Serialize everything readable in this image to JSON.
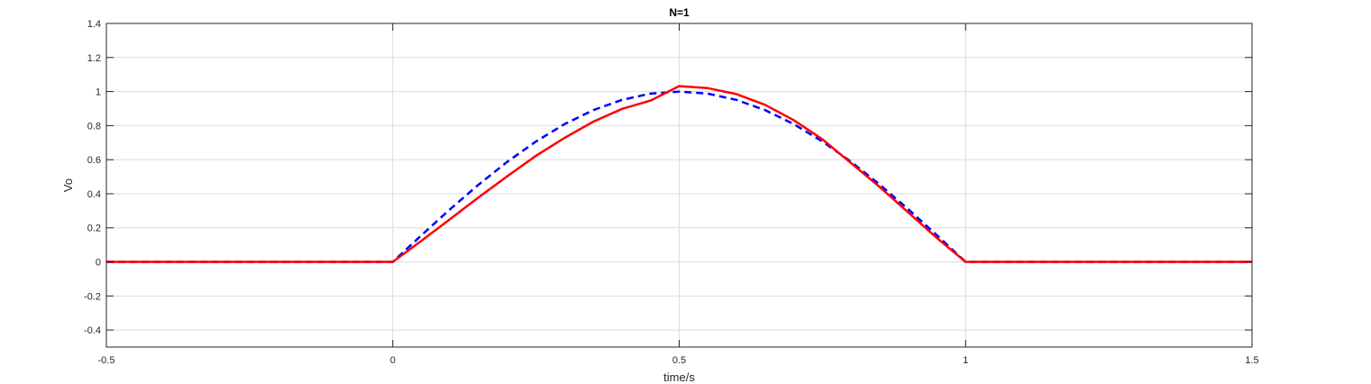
{
  "chart_data": {
    "type": "line",
    "title": "N=1",
    "xlabel": "time/s",
    "ylabel": "Vo",
    "xlim": [
      -0.5,
      1.5
    ],
    "ylim": [
      -0.5,
      1.4
    ],
    "xticks": [
      -0.5,
      0,
      0.5,
      1,
      1.5
    ],
    "xtick_labels": [
      "-0.5",
      "0",
      "0.5",
      "1",
      "1.5"
    ],
    "yticks": [
      -0.4,
      -0.2,
      0,
      0.2,
      0.4,
      0.6,
      0.8,
      1,
      1.2,
      1.4
    ],
    "ytick_labels": [
      "-0.4",
      "-0.2",
      "0",
      "0.2",
      "0.4",
      "0.6",
      "0.8",
      "1",
      "1.2",
      "1.4"
    ],
    "grid": true,
    "series": [
      {
        "style": "dashed",
        "color": "#0000ff",
        "x": [
          -0.5,
          0,
          0.05,
          0.1,
          0.15,
          0.2,
          0.25,
          0.3,
          0.35,
          0.4,
          0.45,
          0.5,
          0.55,
          0.6,
          0.65,
          0.7,
          0.75,
          0.8,
          0.85,
          0.9,
          0.95,
          1.0,
          1.5
        ],
        "y": [
          0,
          0,
          0.156,
          0.309,
          0.454,
          0.588,
          0.707,
          0.809,
          0.891,
          0.951,
          0.988,
          1.0,
          0.988,
          0.951,
          0.891,
          0.809,
          0.707,
          0.588,
          0.454,
          0.309,
          0.156,
          0,
          0
        ]
      },
      {
        "style": "solid",
        "color": "#ff0000",
        "x": [
          -0.5,
          0,
          0.05,
          0.1,
          0.15,
          0.2,
          0.25,
          0.3,
          0.35,
          0.4,
          0.45,
          0.5,
          0.55,
          0.6,
          0.65,
          0.7,
          0.75,
          0.8,
          0.85,
          0.9,
          0.95,
          1.0,
          1.5
        ],
        "y": [
          0,
          0,
          0.124,
          0.251,
          0.379,
          0.503,
          0.623,
          0.728,
          0.823,
          0.898,
          0.947,
          1.032,
          1.02,
          0.985,
          0.922,
          0.832,
          0.72,
          0.58,
          0.44,
          0.29,
          0.14,
          0,
          0
        ]
      }
    ]
  }
}
